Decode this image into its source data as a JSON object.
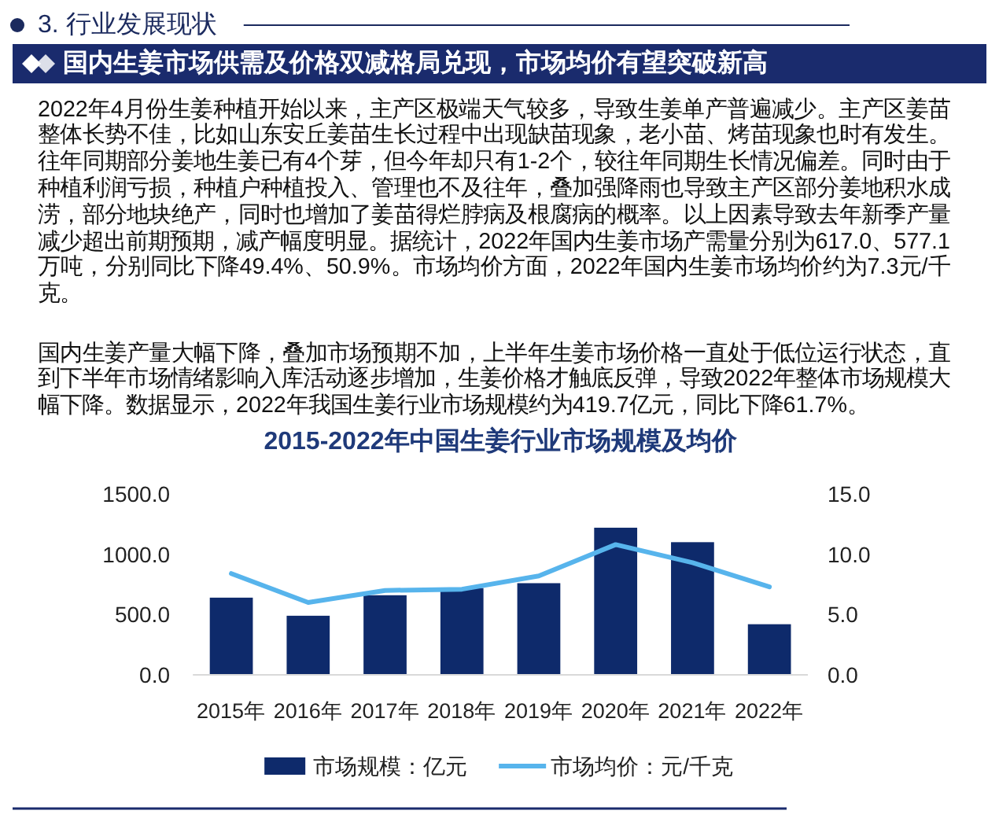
{
  "chart_data": {
    "type": "bar",
    "title": "2015-2022年中国生姜行业市场规模及均价",
    "subtitle": "国内生姜市场供需及价格双减格局兑现，市场均价有望突破新高",
    "annotations": [
      "3. 行业发展现状",
      "2022年4月份生姜种植开始以来，主产区极端天气较多，导致生姜单产普遍减少。主产区姜苗整体长势不佳，比如山东安丘姜苗生长过程中出现缺苗现象，老小苗、烤苗现象也时有发生。往年同期部分姜地生姜已有4个芽，但今年却只有1-2个，较往年同期生长情况偏差。同时由于种植利润亏损，种植户种植投入、管理也不及往年，叠加强降雨也导致主产区部分姜地积水成涝，部分地块绝产，同时也增加了姜苗得烂脖病及根腐病的概率。以上因素导致去年新季产量减少超出前期预期，减产幅度明显。据统计，2022年国内生姜市场产需量分别为617.0、577.1万吨，分别同比下降49.4%、50.9%。市场均价方面，2022年国内生姜市场均价约为7.3元/千克。",
      "国内生姜产量大幅下降，叠加市场预期不加，上半年生姜市场价格一直处于低位运行状态，直到下半年市场情绪影响入库活动逐步增加，生姜价格才触底反弹，导致2022年整体市场规模大幅下降。数据显示，2022年我国生姜行业市场规模约为419.7亿元，同比下降61.7%。"
    ],
    "categories": [
      "2015年",
      "2016年",
      "2017年",
      "2018年",
      "2019年",
      "2020年",
      "2021年",
      "2022年"
    ],
    "series": [
      {
        "name": "市场规模：亿元",
        "color": "#0e2a6b",
        "values": [
          640,
          490,
          660,
          720,
          760,
          1220,
          1100,
          419.7
        ]
      },
      {
        "name": "市场均价：元/千克",
        "type": "line",
        "axis": "y2",
        "color": "#57b4ec",
        "values": [
          8.4,
          6.0,
          7.0,
          7.1,
          8.2,
          10.8,
          9.3,
          7.3
        ]
      }
    ],
    "ylim": [
      0,
      1500
    ],
    "yticks": [
      {
        "value": 0,
        "label": "0.0"
      },
      {
        "value": 500,
        "label": "500.0"
      },
      {
        "value": 1000,
        "label": "1000.0"
      },
      {
        "value": 1500,
        "label": "1500.0"
      }
    ],
    "y2lim": [
      0,
      15
    ],
    "y2ticks": [
      {
        "value": 0,
        "label": "0.0"
      },
      {
        "value": 5,
        "label": "5.0"
      },
      {
        "value": 10,
        "label": "10.0"
      },
      {
        "value": 15,
        "label": "15.0"
      }
    ],
    "legend": "bottom"
  }
}
